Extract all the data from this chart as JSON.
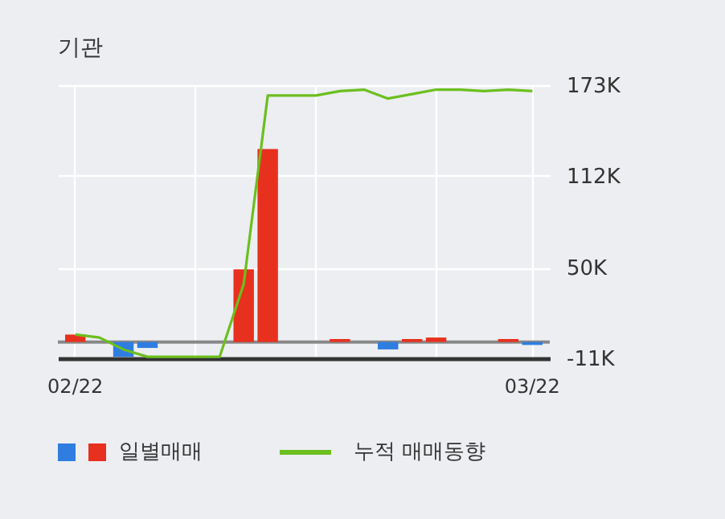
{
  "chart_data": {
    "type": "bar",
    "title": "기관",
    "categories": [
      "02/22",
      null,
      null,
      null,
      null,
      null,
      null,
      null,
      null,
      null,
      null,
      null,
      null,
      null,
      null,
      null,
      null,
      null,
      null,
      "03/22"
    ],
    "series": [
      {
        "name": "일별매매",
        "colors": [
          "#e8301e",
          "#e8301e",
          "#2f7de1",
          "#2f7de1",
          "#e8301e",
          "#e8301e",
          "#e8301e",
          "#e8301e",
          "#e8301e",
          "#e8301e",
          "#e8301e",
          "#e8301e",
          "#e8301e",
          "#2f7de1",
          "#e8301e",
          "#e8301e",
          "#e8301e",
          "#e8301e",
          "#e8301e",
          "#2f7de1"
        ],
        "values": [
          5000,
          0,
          -10000,
          -4000,
          0,
          0,
          0,
          49000,
          130000,
          0,
          0,
          2000,
          0,
          -5000,
          2000,
          3000,
          0,
          0,
          2000,
          -2000
        ]
      },
      {
        "name": "누적 매매동향",
        "type": "line",
        "color": "#6cbf1e",
        "values": [
          5000,
          3000,
          -5000,
          -10000,
          -10000,
          -10000,
          -10000,
          39000,
          166000,
          166000,
          166000,
          169000,
          170000,
          164000,
          167000,
          170000,
          170000,
          169000,
          170000,
          169000
        ]
      }
    ],
    "ylim": [
      -11000,
      173000
    ],
    "yticks": [
      {
        "value": -11000,
        "label": "-11K"
      },
      {
        "value": 50000,
        "label": "50K"
      },
      {
        "value": 112000,
        "label": "112K"
      },
      {
        "value": 173000,
        "label": "173K"
      }
    ],
    "ref_lines": [
      {
        "axis": "y",
        "value": 0,
        "color": "#888888"
      }
    ],
    "grid": true,
    "legend": "bottom"
  }
}
